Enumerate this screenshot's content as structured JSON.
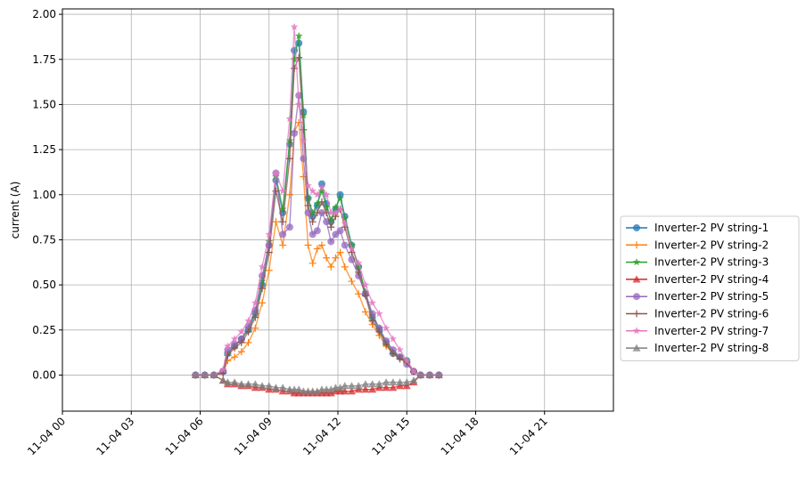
{
  "chart_data": {
    "type": "line",
    "ylabel": "current (A)",
    "xlabel": "",
    "x_axis": {
      "unit": "hours",
      "range": [
        0,
        24
      ],
      "tick_values": [
        0,
        3,
        6,
        9,
        12,
        15,
        18,
        21
      ],
      "tick_labels": [
        "11-04 00",
        "11-04 03",
        "11-04 06",
        "11-04 09",
        "11-04 12",
        "11-04 15",
        "11-04 18",
        "11-04 21"
      ]
    },
    "y_axis": {
      "range": [
        -0.2,
        2.03
      ],
      "tick_values": [
        0.0,
        0.25,
        0.5,
        0.75,
        1.0,
        1.25,
        1.5,
        1.75,
        2.0
      ],
      "tick_labels": [
        "0.00",
        "0.25",
        "0.50",
        "0.75",
        "1.00",
        "1.25",
        "1.50",
        "1.75",
        "2.00"
      ]
    },
    "grid": true,
    "legend_placement": "right",
    "colors": [
      "#1f77b4",
      "#ff7f0e",
      "#2ca02c",
      "#d62728",
      "#9467bd",
      "#8c564b",
      "#e377c2",
      "#7f7f7f"
    ],
    "time_hours": [
      5.8,
      6.2,
      6.6,
      7.0,
      7.2,
      7.5,
      7.8,
      8.1,
      8.4,
      8.7,
      9.0,
      9.3,
      9.6,
      9.9,
      10.1,
      10.3,
      10.5,
      10.7,
      10.9,
      11.1,
      11.3,
      11.5,
      11.7,
      11.9,
      12.1,
      12.3,
      12.6,
      12.9,
      13.2,
      13.5,
      13.8,
      14.1,
      14.4,
      14.7,
      15.0,
      15.3,
      15.6,
      16.0,
      16.4
    ],
    "series": [
      {
        "name": "Inverter-2 PV string-1",
        "marker": "circle",
        "values": [
          0,
          0,
          0,
          0.02,
          0.12,
          0.16,
          0.2,
          0.25,
          0.34,
          0.5,
          0.72,
          1.08,
          0.9,
          1.28,
          1.8,
          1.84,
          1.46,
          0.98,
          0.88,
          0.94,
          1.06,
          0.95,
          0.85,
          0.92,
          1.0,
          0.88,
          0.72,
          0.6,
          0.45,
          0.32,
          0.25,
          0.18,
          0.12,
          0.1,
          0.08,
          0.02,
          0,
          0,
          0
        ]
      },
      {
        "name": "Inverter-2 PV string-2",
        "marker": "plus",
        "values": [
          0,
          0,
          0,
          0.01,
          0.08,
          0.1,
          0.13,
          0.18,
          0.26,
          0.4,
          0.58,
          0.85,
          0.72,
          1.0,
          1.35,
          1.4,
          1.1,
          0.72,
          0.62,
          0.7,
          0.72,
          0.65,
          0.6,
          0.65,
          0.68,
          0.6,
          0.52,
          0.45,
          0.35,
          0.28,
          0.22,
          0.16,
          0.12,
          0.09,
          0.07,
          0.02,
          0,
          0,
          0
        ]
      },
      {
        "name": "Inverter-2 PV string-3",
        "marker": "star",
        "values": [
          0,
          0,
          0,
          0.02,
          0.12,
          0.16,
          0.2,
          0.26,
          0.35,
          0.52,
          0.74,
          1.1,
          0.92,
          1.3,
          1.75,
          1.88,
          1.44,
          0.98,
          0.9,
          0.95,
          1.02,
          0.93,
          0.86,
          0.93,
          0.98,
          0.87,
          0.72,
          0.6,
          0.46,
          0.33,
          0.26,
          0.18,
          0.13,
          0.1,
          0.08,
          0.02,
          0,
          0,
          0
        ]
      },
      {
        "name": "Inverter-2 PV string-4",
        "marker": "triangle",
        "values": [
          0,
          0,
          0,
          -0.03,
          -0.05,
          -0.05,
          -0.06,
          -0.06,
          -0.07,
          -0.07,
          -0.08,
          -0.08,
          -0.09,
          -0.09,
          -0.1,
          -0.1,
          -0.1,
          -0.1,
          -0.1,
          -0.1,
          -0.1,
          -0.1,
          -0.1,
          -0.09,
          -0.09,
          -0.09,
          -0.09,
          -0.08,
          -0.08,
          -0.08,
          -0.07,
          -0.07,
          -0.07,
          -0.06,
          -0.06,
          -0.04,
          0,
          0,
          0
        ]
      },
      {
        "name": "Inverter-2 PV string-5",
        "marker": "circle",
        "values": [
          0,
          0,
          0,
          0.02,
          0.14,
          0.17,
          0.2,
          0.27,
          0.36,
          0.55,
          0.72,
          1.12,
          0.78,
          0.82,
          1.34,
          1.55,
          1.2,
          0.9,
          0.78,
          0.8,
          0.9,
          0.85,
          0.74,
          0.78,
          0.8,
          0.72,
          0.64,
          0.55,
          0.45,
          0.34,
          0.26,
          0.19,
          0.14,
          0.1,
          0.06,
          0.02,
          0,
          0,
          0
        ]
      },
      {
        "name": "Inverter-2 PV string-6",
        "marker": "plus",
        "values": [
          0,
          0,
          0,
          0.01,
          0.11,
          0.15,
          0.18,
          0.24,
          0.32,
          0.48,
          0.68,
          1.02,
          0.85,
          1.2,
          1.7,
          1.76,
          1.36,
          0.94,
          0.85,
          0.9,
          0.96,
          0.9,
          0.82,
          0.88,
          0.92,
          0.82,
          0.68,
          0.57,
          0.44,
          0.3,
          0.24,
          0.17,
          0.12,
          0.09,
          0.07,
          0.02,
          0,
          0,
          0
        ]
      },
      {
        "name": "Inverter-2 PV string-7",
        "marker": "star",
        "values": [
          0,
          0,
          0,
          0.03,
          0.16,
          0.2,
          0.24,
          0.3,
          0.4,
          0.6,
          0.78,
          1.12,
          1.02,
          1.42,
          1.93,
          1.5,
          1.3,
          1.05,
          1.02,
          1.0,
          1.04,
          1.0,
          0.9,
          0.9,
          0.92,
          0.84,
          0.7,
          0.62,
          0.5,
          0.4,
          0.34,
          0.26,
          0.2,
          0.14,
          0.08,
          0.02,
          0,
          0,
          0
        ]
      },
      {
        "name": "Inverter-2 PV string-8",
        "marker": "triangle",
        "values": [
          0,
          0,
          0,
          -0.03,
          -0.04,
          -0.04,
          -0.05,
          -0.05,
          -0.05,
          -0.06,
          -0.06,
          -0.07,
          -0.07,
          -0.08,
          -0.08,
          -0.08,
          -0.09,
          -0.09,
          -0.09,
          -0.09,
          -0.08,
          -0.08,
          -0.08,
          -0.07,
          -0.07,
          -0.06,
          -0.06,
          -0.06,
          -0.05,
          -0.05,
          -0.05,
          -0.04,
          -0.04,
          -0.04,
          -0.04,
          -0.03,
          0,
          0,
          0
        ]
      }
    ]
  }
}
